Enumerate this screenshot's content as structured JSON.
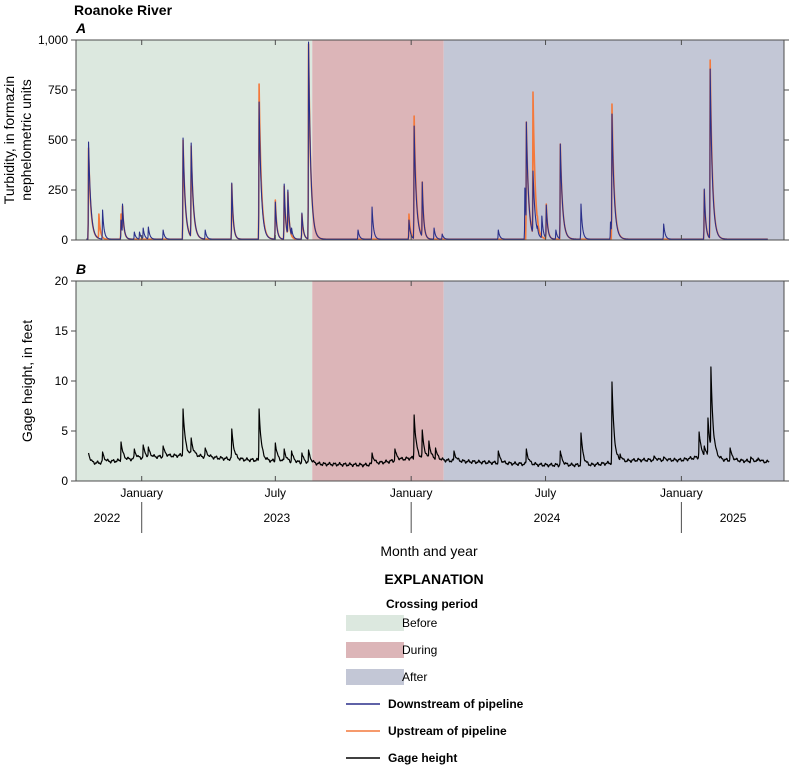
{
  "figure": {
    "site_title": "Roanoke River",
    "x_axis_title": "Month and year"
  },
  "colors": {
    "before": "#dce8df",
    "during": "#dcb5b8",
    "after": "#c3c7d6",
    "downstream": "#2a2f8a",
    "upstream": "#f4793b",
    "gage": "#000000",
    "axis": "#4d4d4d"
  },
  "chart_data": [
    {
      "type": "line",
      "panel_label": "A",
      "ylabel_line1": "Turbidity, in formazin",
      "ylabel_line2": "nephelometric units",
      "ylim": [
        0,
        1000
      ],
      "yticks": [
        0,
        250,
        500,
        750,
        1000
      ],
      "ytick_labels": [
        "0",
        "250",
        "500",
        "750",
        "1,000"
      ],
      "xlim": [
        "2022-10-04",
        "2025-05-20"
      ],
      "baseline": 4,
      "series": [
        {
          "name": "Upstream of pipeline",
          "color_key": "upstream",
          "peaks": [
            [
              "2022-10-21",
              460,
              3
            ],
            [
              "2022-11-04",
              130,
              2
            ],
            [
              "2022-12-04",
              130,
              2
            ],
            [
              "2022-12-06",
              170,
              2
            ],
            [
              "2023-02-26",
              500,
              3
            ],
            [
              "2023-03-09",
              470,
              3
            ],
            [
              "2023-05-03",
              280,
              2
            ],
            [
              "2023-06-09",
              780,
              3
            ],
            [
              "2023-07-01",
              200,
              2
            ],
            [
              "2023-07-13",
              270,
              2
            ],
            [
              "2023-07-18",
              240,
              2
            ],
            [
              "2023-08-06",
              130,
              2
            ],
            [
              "2023-08-15",
              980,
              3
            ],
            [
              "2024-01-05",
              620,
              3
            ],
            [
              "2024-01-16",
              290,
              2
            ],
            [
              "2023-12-29",
              130,
              2
            ],
            [
              "2024-06-05",
              590,
              3
            ],
            [
              "2024-06-14",
              740,
              3
            ],
            [
              "2024-06-20",
              120,
              2
            ],
            [
              "2024-07-02",
              180,
              2
            ],
            [
              "2024-07-21",
              480,
              3
            ],
            [
              "2024-09-29",
              680,
              3
            ],
            [
              "2025-02-01",
              250,
              2
            ],
            [
              "2025-02-09",
              900,
              3
            ]
          ]
        },
        {
          "name": "Downstream of pipeline",
          "color_key": "downstream",
          "peaks": [
            [
              "2022-10-21",
              490,
              3
            ],
            [
              "2022-10-24",
              40,
              2
            ],
            [
              "2022-11-09",
              150,
              2
            ],
            [
              "2022-12-04",
              100,
              2
            ],
            [
              "2022-12-06",
              180,
              2
            ],
            [
              "2022-12-22",
              40,
              2
            ],
            [
              "2022-12-29",
              40,
              2
            ],
            [
              "2023-01-03",
              60,
              2
            ],
            [
              "2023-01-10",
              65,
              2
            ],
            [
              "2023-01-30",
              50,
              2
            ],
            [
              "2023-02-26",
              510,
              3
            ],
            [
              "2023-03-09",
              485,
              3
            ],
            [
              "2023-03-28",
              50,
              2
            ],
            [
              "2023-05-03",
              285,
              2
            ],
            [
              "2023-06-09",
              690,
              3
            ],
            [
              "2023-07-01",
              190,
              2
            ],
            [
              "2023-07-13",
              280,
              2
            ],
            [
              "2023-07-18",
              250,
              2
            ],
            [
              "2023-07-23",
              60,
              2
            ],
            [
              "2023-08-06",
              135,
              2
            ],
            [
              "2023-08-15",
              990,
              3
            ],
            [
              "2023-10-21",
              50,
              2
            ],
            [
              "2023-11-09",
              165,
              2
            ],
            [
              "2023-12-29",
              100,
              2
            ],
            [
              "2024-01-05",
              570,
              3
            ],
            [
              "2024-01-16",
              290,
              2
            ],
            [
              "2024-02-01",
              60,
              2
            ],
            [
              "2024-02-12",
              30,
              2
            ],
            [
              "2024-04-28",
              50,
              2
            ],
            [
              "2024-06-03",
              260,
              2
            ],
            [
              "2024-06-05",
              590,
              3
            ],
            [
              "2024-06-14",
              345,
              3
            ],
            [
              "2024-06-20",
              70,
              2
            ],
            [
              "2024-06-26",
              120,
              2
            ],
            [
              "2024-07-02",
              175,
              2
            ],
            [
              "2024-07-15",
              50,
              2
            ],
            [
              "2024-07-21",
              480,
              3
            ],
            [
              "2024-08-18",
              180,
              2
            ],
            [
              "2024-09-27",
              90,
              2
            ],
            [
              "2024-09-29",
              630,
              3
            ],
            [
              "2024-12-08",
              80,
              2
            ],
            [
              "2025-02-01",
              255,
              2
            ],
            [
              "2025-02-09",
              855,
              3
            ]
          ]
        }
      ]
    },
    {
      "type": "line",
      "panel_label": "B",
      "ylabel": "Gage height, in feet",
      "ylim": [
        0,
        20
      ],
      "yticks": [
        0,
        5,
        10,
        15,
        20
      ],
      "ytick_labels": [
        "0",
        "5",
        "10",
        "15",
        "20"
      ],
      "xlim": [
        "2022-10-04",
        "2025-05-20"
      ],
      "x_start": "2022-10-21",
      "x_end": "2025-04-30",
      "series": [
        {
          "name": "Gage height",
          "color_key": "gage",
          "base_levels": [
            [
              "2022-10-21",
              1.7
            ],
            [
              "2023-01-01",
              2.3
            ],
            [
              "2023-03-01",
              2.6
            ],
            [
              "2023-05-01",
              2.2
            ],
            [
              "2023-07-01",
              2.0
            ],
            [
              "2023-09-01",
              1.7
            ],
            [
              "2023-11-01",
              1.6
            ],
            [
              "2024-01-01",
              2.3
            ],
            [
              "2024-03-01",
              2.0
            ],
            [
              "2024-05-01",
              1.8
            ],
            [
              "2024-07-01",
              1.6
            ],
            [
              "2024-09-01",
              1.6
            ],
            [
              "2024-11-01",
              2.1
            ],
            [
              "2025-01-01",
              2.1
            ],
            [
              "2025-02-01",
              2.5
            ],
            [
              "2025-03-01",
              2.1
            ],
            [
              "2025-04-30",
              1.9
            ]
          ],
          "peaks": [
            [
              "2022-10-21",
              2.8
            ],
            [
              "2022-11-09",
              2.9
            ],
            [
              "2022-12-04",
              3.9
            ],
            [
              "2022-12-22",
              3.2
            ],
            [
              "2023-01-03",
              3.6
            ],
            [
              "2023-01-10",
              3.4
            ],
            [
              "2023-01-30",
              3.5
            ],
            [
              "2023-02-26",
              7.2
            ],
            [
              "2023-03-09",
              4.3
            ],
            [
              "2023-03-28",
              3.3
            ],
            [
              "2023-05-03",
              5.2
            ],
            [
              "2023-06-09",
              7.2
            ],
            [
              "2023-07-01",
              3.8
            ],
            [
              "2023-07-13",
              3.2
            ],
            [
              "2023-07-23",
              3.0
            ],
            [
              "2023-08-06",
              2.8
            ],
            [
              "2023-08-15",
              3.1
            ],
            [
              "2023-11-09",
              2.8
            ],
            [
              "2023-12-10",
              3.2
            ],
            [
              "2024-01-05",
              6.6
            ],
            [
              "2024-01-16",
              5.1
            ],
            [
              "2024-01-25",
              4.0
            ],
            [
              "2024-02-03",
              3.3
            ],
            [
              "2024-02-28",
              3.0
            ],
            [
              "2024-04-28",
              3.0
            ],
            [
              "2024-06-05",
              3.2
            ],
            [
              "2024-07-21",
              3.0
            ],
            [
              "2024-08-18",
              4.8
            ],
            [
              "2024-09-29",
              9.9
            ],
            [
              "2024-10-10",
              2.7
            ],
            [
              "2024-11-25",
              2.5
            ],
            [
              "2024-12-08",
              2.4
            ],
            [
              "2025-01-25",
              4.9
            ],
            [
              "2025-02-01",
              3.5
            ],
            [
              "2025-02-06",
              6.3
            ],
            [
              "2025-02-10",
              11.4
            ],
            [
              "2025-02-15",
              4.1
            ],
            [
              "2025-03-08",
              3.3
            ],
            [
              "2025-04-05",
              2.4
            ],
            [
              "2025-04-15",
              2.3
            ]
          ]
        }
      ]
    }
  ],
  "periods": [
    {
      "label": "Before",
      "color_key": "before",
      "start": "2022-10-04",
      "end": "2023-08-20"
    },
    {
      "label": "During",
      "color_key": "during",
      "start": "2023-08-20",
      "end": "2024-02-14"
    },
    {
      "label": "After",
      "color_key": "after",
      "start": "2024-02-14",
      "end": "2025-05-20"
    }
  ],
  "x_ticks": [
    {
      "date": "2023-01-01",
      "label": "January",
      "year_divider": true
    },
    {
      "date": "2023-07-01",
      "label": "July",
      "year_divider": false
    },
    {
      "date": "2024-01-01",
      "label": "January",
      "year_divider": true
    },
    {
      "date": "2024-07-01",
      "label": "July",
      "year_divider": false
    },
    {
      "date": "2025-01-01",
      "label": "January",
      "year_divider": true
    }
  ],
  "years": [
    {
      "label": "2022",
      "date": "2022-11-15"
    },
    {
      "label": "2023",
      "date": "2023-07-03"
    },
    {
      "label": "2024",
      "date": "2024-07-03"
    },
    {
      "label": "2025",
      "date": "2025-03-12"
    }
  ],
  "legend": {
    "title": "EXPLANATION",
    "subtitle": "Crossing period",
    "items": [
      {
        "label": "Before",
        "kind": "patch",
        "color_key": "before"
      },
      {
        "label": "During",
        "kind": "patch",
        "color_key": "during"
      },
      {
        "label": "After",
        "kind": "patch",
        "color_key": "after"
      },
      {
        "label": "Downstream of pipeline",
        "kind": "line",
        "color_key": "downstream"
      },
      {
        "label": "Upstream of pipeline",
        "kind": "line",
        "color_key": "upstream"
      },
      {
        "label": "Gage height",
        "kind": "line",
        "color_key": "gage"
      }
    ]
  }
}
